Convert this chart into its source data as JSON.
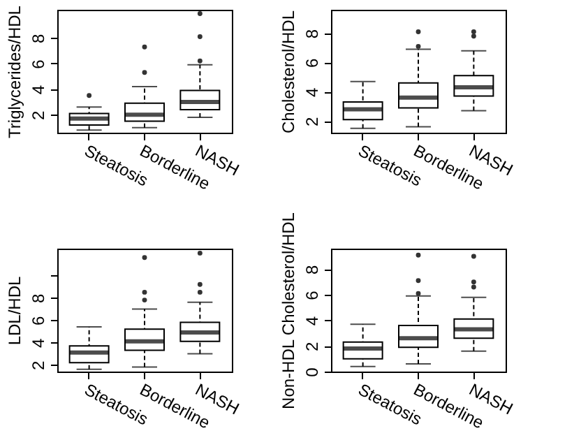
{
  "chart_data": [
    {
      "type": "box",
      "ylabel": "Triglycerides/HDL",
      "categories": [
        "Steatosis",
        "Borderline",
        "NASH"
      ],
      "ylim": [
        0.6,
        10.2
      ],
      "yticks": [
        2,
        4,
        6,
        8
      ],
      "grid": false,
      "boxes": [
        {
          "low": 0.8,
          "q1": 1.2,
          "median": 1.7,
          "q3": 2.1,
          "high": 2.6,
          "outliers": [
            3.5
          ]
        },
        {
          "low": 1.0,
          "q1": 1.5,
          "median": 2.0,
          "q3": 2.9,
          "high": 4.2,
          "outliers": [
            5.3,
            7.3
          ]
        },
        {
          "low": 1.8,
          "q1": 2.4,
          "median": 3.0,
          "q3": 3.9,
          "high": 5.9,
          "outliers": [
            6.2,
            8.1,
            9.9
          ]
        }
      ]
    },
    {
      "type": "box",
      "ylabel": "Cholesterol/HDL",
      "categories": [
        "Steatosis",
        "Borderline",
        "NASH"
      ],
      "ylim": [
        1.2,
        9.6
      ],
      "yticks": [
        2,
        4,
        6,
        8
      ],
      "grid": false,
      "boxes": [
        {
          "low": 1.5,
          "q1": 2.1,
          "median": 2.8,
          "q3": 3.3,
          "high": 4.7
        },
        {
          "low": 1.6,
          "q1": 2.9,
          "median": 3.6,
          "q3": 4.6,
          "high": 6.9,
          "outliers": [
            7.1,
            8.1
          ]
        },
        {
          "low": 2.7,
          "q1": 3.7,
          "median": 4.3,
          "q3": 5.1,
          "high": 6.8,
          "outliers": [
            7.8,
            8.1
          ]
        }
      ]
    },
    {
      "type": "box",
      "ylabel": "LDL/HDL",
      "categories": [
        "Steatosis",
        "Borderline",
        "NASH"
      ],
      "ylim": [
        1.4,
        12.4
      ],
      "yticks": [
        2,
        4,
        6,
        8,
        {
          "value": 10,
          "label": null
        }
      ],
      "grid": false,
      "boxes": [
        {
          "low": 1.6,
          "q1": 2.2,
          "median": 3.1,
          "q3": 3.7,
          "high": 5.4
        },
        {
          "low": 1.8,
          "q1": 3.3,
          "median": 4.1,
          "q3": 5.2,
          "high": 7.0,
          "outliers": [
            7.8,
            8.5,
            11.6
          ]
        },
        {
          "low": 3.0,
          "q1": 4.1,
          "median": 4.9,
          "q3": 5.8,
          "high": 7.6,
          "outliers": [
            8.5,
            9.2,
            12.0
          ]
        }
      ]
    },
    {
      "type": "box",
      "ylabel": "Non-HDL Cholesterol/HDL",
      "categories": [
        "Steatosis",
        "Borderline",
        "NASH"
      ],
      "ylim": [
        0,
        9.6
      ],
      "yticks": [
        0,
        2,
        4,
        6,
        8
      ],
      "grid": false,
      "boxes": [
        {
          "low": 0.4,
          "q1": 1.0,
          "median": 1.8,
          "q3": 2.3,
          "high": 3.7
        },
        {
          "low": 0.6,
          "q1": 1.9,
          "median": 2.6,
          "q3": 3.6,
          "high": 5.9,
          "outliers": [
            6.1,
            7.1,
            9.1
          ]
        },
        {
          "low": 1.6,
          "q1": 2.6,
          "median": 3.3,
          "q3": 4.1,
          "high": 5.8,
          "outliers": [
            6.6,
            7.0,
            9.0
          ]
        }
      ]
    }
  ]
}
